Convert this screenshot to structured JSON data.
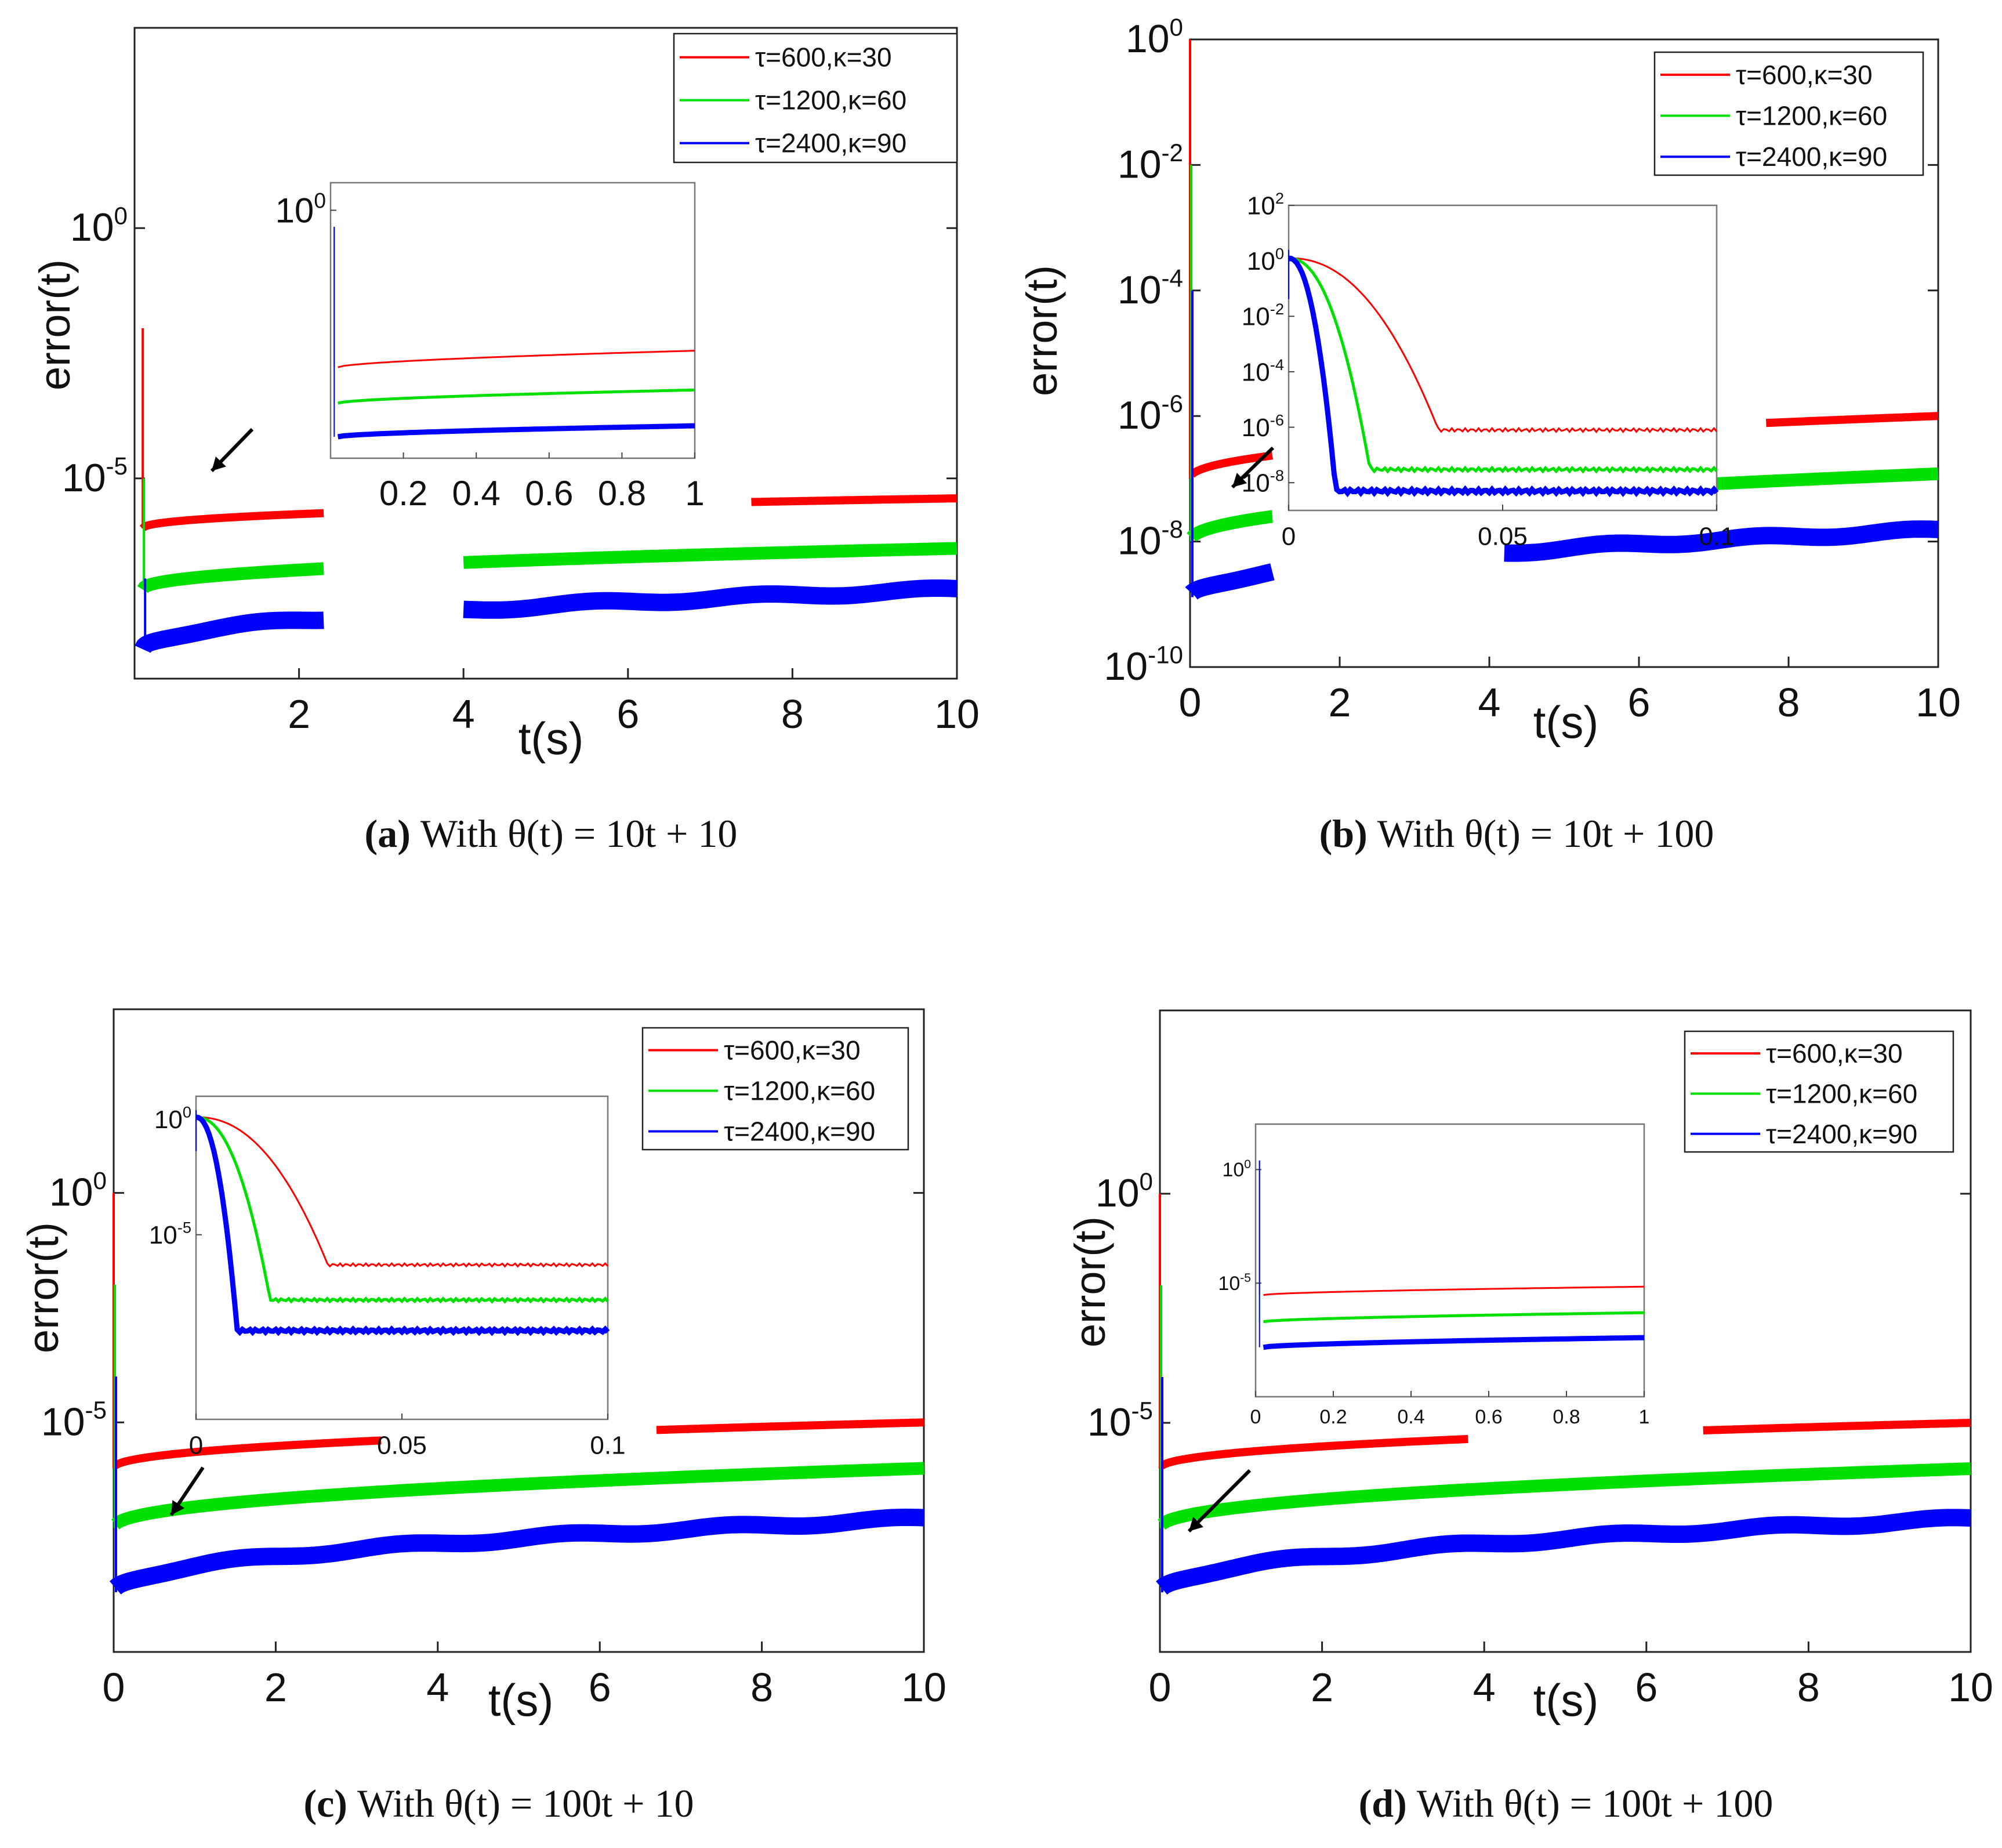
{
  "figure": {
    "legend_entries": [
      "τ=600,κ=30",
      "τ=1200,κ=60",
      "τ=2400,κ=90"
    ],
    "series_colors": {
      "tau600": "#ff0000",
      "tau1200": "#00e000",
      "tau2400": "#0000ff"
    }
  },
  "chart_data": [
    {
      "id": "a",
      "type": "line",
      "caption": {
        "label": "(a)",
        "text": "With θ(t) = 10t + 10"
      },
      "ylabel": "error(t)",
      "xlabel": "t(s)",
      "yscale": "log",
      "xlim": [
        0,
        10
      ],
      "ylim": [
        1e-09,
        10000.0
      ],
      "xticks": [
        "2",
        "4",
        "6",
        "8",
        "10"
      ],
      "yticks": [
        {
          "value": 1,
          "label": "10^0"
        },
        {
          "value": 1e-05,
          "label": "10^-5"
        }
      ],
      "series": [
        {
          "name": "τ=600,κ=30",
          "color": "#ff0000",
          "start": 1e-06,
          "end": 4e-06,
          "peak": 0.01
        },
        {
          "name": "τ=1200,κ=60",
          "color": "#00e000",
          "start": 6e-08,
          "end": 4e-07,
          "peak": 1e-05
        },
        {
          "name": "τ=2400,κ=90",
          "color": "#0000ff",
          "start": 4e-09,
          "end": 6e-08,
          "peak": 1e-07
        }
      ],
      "inset": {
        "xlim": [
          0,
          1
        ],
        "ylim": [
          1e-09,
          10
        ],
        "xticks": [
          "0.2",
          "0.4",
          "0.6",
          "0.8",
          "1"
        ],
        "yticks": [
          {
            "value": 1,
            "label": "10^0"
          }
        ],
        "series": [
          {
            "name": "τ=600,κ=30",
            "color": "#ff0000",
            "start": 2e-06,
            "end": 8e-06
          },
          {
            "name": "τ=1200,κ=60",
            "color": "#00e000",
            "start": 1e-07,
            "end": 3e-07
          },
          {
            "name": "τ=2400,κ=90",
            "color": "#0000ff",
            "start": 6e-09,
            "end": 1.5e-08
          }
        ]
      }
    },
    {
      "id": "b",
      "type": "line",
      "caption": {
        "label": "(b)",
        "text": "With θ(t) = 10t + 100"
      },
      "ylabel": "error(t)",
      "xlabel": "t(s)",
      "yscale": "log",
      "xlim": [
        0,
        10
      ],
      "ylim": [
        1e-10,
        1
      ],
      "xticks": [
        "0",
        "2",
        "4",
        "6",
        "8",
        "10"
      ],
      "yticks": [
        {
          "value": 1,
          "label": "10^0"
        },
        {
          "value": 0.01,
          "label": "10^-2"
        },
        {
          "value": 0.0001,
          "label": "10^-4"
        },
        {
          "value": 1e-06,
          "label": "10^-6"
        },
        {
          "value": 1e-08,
          "label": "10^-8"
        },
        {
          "value": 1e-10,
          "label": "10^-10"
        }
      ],
      "series": [
        {
          "name": "τ=600,κ=30",
          "color": "#ff0000",
          "start": 1e-07,
          "end": 1e-06,
          "peak": 1
        },
        {
          "name": "τ=1200,κ=60",
          "color": "#00e000",
          "start": 1e-08,
          "end": 1.2e-07,
          "peak": 0.01
        },
        {
          "name": "τ=2400,κ=90",
          "color": "#0000ff",
          "start": 1.3e-09,
          "end": 1.5e-08,
          "peak": 0.0001
        }
      ],
      "inset": {
        "xlim": [
          0,
          0.1
        ],
        "ylim": [
          1e-09,
          100
        ],
        "xticks": [
          "0",
          "0.05",
          "0.1"
        ],
        "yticks": [
          {
            "value": 100,
            "label": "10^2"
          },
          {
            "value": 1,
            "label": "10^0"
          },
          {
            "value": 0.01,
            "label": "10^-2"
          },
          {
            "value": 0.0001,
            "label": "10^-4"
          },
          {
            "value": 1e-06,
            "label": "10^-6"
          },
          {
            "value": 1e-08,
            "label": "10^-8"
          }
        ],
        "series": [
          {
            "name": "τ=600,κ=30",
            "color": "#ff0000",
            "knee_t": 0.035,
            "floor": 8e-07
          },
          {
            "name": "τ=1200,κ=60",
            "color": "#00e000",
            "knee_t": 0.019,
            "floor": 3e-08
          },
          {
            "name": "τ=2400,κ=90",
            "color": "#0000ff",
            "knee_t": 0.011,
            "floor": 5e-09
          }
        ]
      }
    },
    {
      "id": "c",
      "type": "line",
      "caption": {
        "label": "(c)",
        "text": "With θ(t) = 100t + 10"
      },
      "ylabel": "error(t)",
      "xlabel": "t(s)",
      "yscale": "log",
      "xlim": [
        0,
        10
      ],
      "ylim": [
        1e-10,
        10000.0
      ],
      "xticks": [
        "0",
        "2",
        "4",
        "6",
        "8",
        "10"
      ],
      "yticks": [
        {
          "value": 1,
          "label": "10^0"
        },
        {
          "value": 1e-05,
          "label": "10^-5"
        }
      ],
      "series": [
        {
          "name": "τ=600,κ=30",
          "color": "#ff0000",
          "start": 1e-06,
          "end": 1e-05,
          "peak": 1
        },
        {
          "name": "τ=1200,κ=60",
          "color": "#00e000",
          "start": 5e-08,
          "end": 1e-06,
          "peak": 0.01
        },
        {
          "name": "τ=2400,κ=90",
          "color": "#0000ff",
          "start": 2e-09,
          "end": 8e-08,
          "peak": 0.0001
        }
      ],
      "inset": {
        "xlim": [
          0,
          0.1
        ],
        "ylim": [
          1e-13,
          10
        ],
        "xticks": [
          "0",
          "0.05",
          "0.1"
        ],
        "yticks": [
          {
            "value": 1,
            "label": "10^0"
          },
          {
            "value": 1e-05,
            "label": "10^-5"
          }
        ],
        "series": [
          {
            "name": "τ=600,κ=30",
            "color": "#ff0000",
            "knee_t": 0.032,
            "floor": 5e-07
          },
          {
            "name": "τ=1200,κ=60",
            "color": "#00e000",
            "knee_t": 0.018,
            "floor": 1.5e-08
          },
          {
            "name": "τ=2400,κ=90",
            "color": "#0000ff",
            "knee_t": 0.01,
            "floor": 7e-10
          }
        ]
      }
    },
    {
      "id": "d",
      "type": "line",
      "caption": {
        "label": "(d)",
        "text": "With θ(t) = 100t + 100"
      },
      "ylabel": "error(t)",
      "xlabel": "t(s)",
      "yscale": "log",
      "xlim": [
        0,
        10
      ],
      "ylim": [
        1e-10,
        10000.0
      ],
      "xticks": [
        "0",
        "2",
        "4",
        "6",
        "8",
        "10"
      ],
      "yticks": [
        {
          "value": 1,
          "label": "10^0"
        },
        {
          "value": 1e-05,
          "label": "10^-5"
        }
      ],
      "series": [
        {
          "name": "τ=600,κ=30",
          "color": "#ff0000",
          "start": 1e-06,
          "end": 1e-05,
          "peak": 1
        },
        {
          "name": "τ=1200,κ=60",
          "color": "#00e000",
          "start": 5e-08,
          "end": 1e-06,
          "peak": 0.01
        },
        {
          "name": "τ=2400,κ=90",
          "color": "#0000ff",
          "start": 2e-09,
          "end": 8e-08,
          "peak": 0.0001
        }
      ],
      "inset": {
        "xlim": [
          0,
          1
        ],
        "ylim": [
          1e-10,
          100
        ],
        "xticks": [
          "0",
          "0.2",
          "0.4",
          "0.6",
          "0.8",
          "1"
        ],
        "yticks": [
          {
            "value": 1,
            "label": "10^0"
          },
          {
            "value": 1e-05,
            "label": "10^-5"
          }
        ],
        "series": [
          {
            "name": "τ=600,κ=30",
            "color": "#ff0000",
            "start": 3e-06,
            "end": 7e-06
          },
          {
            "name": "τ=1200,κ=60",
            "color": "#00e000",
            "start": 2e-07,
            "end": 5e-07
          },
          {
            "name": "τ=2400,κ=90",
            "color": "#0000ff",
            "start": 1.5e-08,
            "end": 4e-08
          }
        ]
      }
    }
  ]
}
